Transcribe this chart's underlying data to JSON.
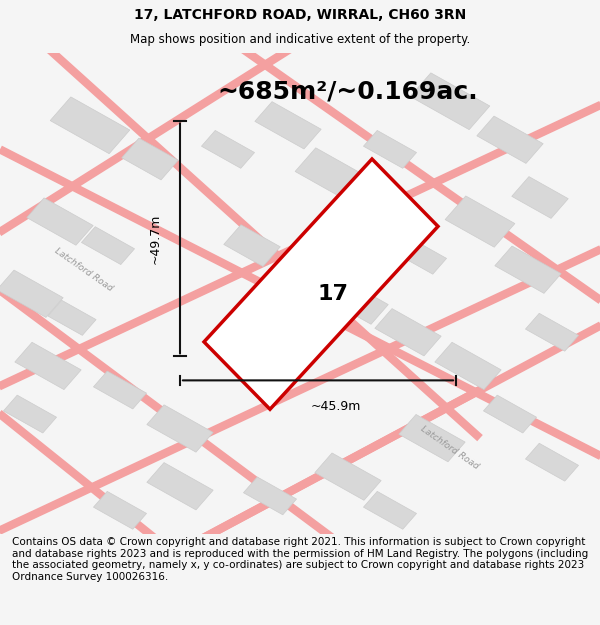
{
  "title_line1": "17, LATCHFORD ROAD, WIRRAL, CH60 3RN",
  "title_line2": "Map shows position and indicative extent of the property.",
  "area_text": "~685m²/~0.169ac.",
  "label_number": "17",
  "dim_vertical": "~49.7m",
  "dim_horizontal": "~45.9m",
  "road_label1": "Latchford Road",
  "road_label2": "Latchford Road",
  "footer_text": "Contains OS data © Crown copyright and database right 2021. This information is subject to Crown copyright and database rights 2023 and is reproduced with the permission of HM Land Registry. The polygons (including the associated geometry, namely x, y co-ordinates) are subject to Crown copyright and database rights 2023 Ordnance Survey 100026316.",
  "bg_color": "#f5f5f5",
  "map_bg": "#ffffff",
  "plot_color_fill": "#e8e8e8",
  "plot_color_edge": "#cc0000",
  "pink_road_color": "#f4a0a0",
  "gray_block_color": "#d8d8d8",
  "dim_line_color": "#111111",
  "title_fontsize": 10,
  "area_fontsize": 20,
  "footer_fontsize": 7.5
}
